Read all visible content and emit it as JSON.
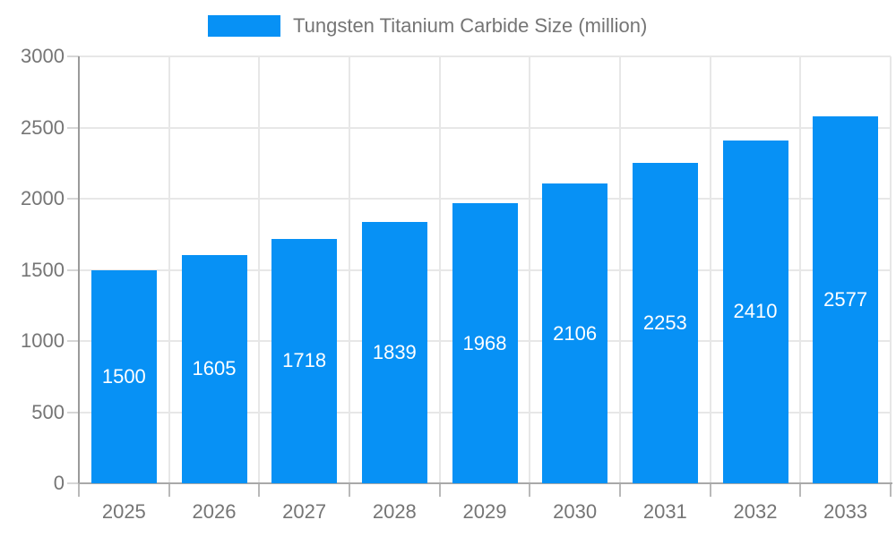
{
  "chart_data": {
    "type": "bar",
    "title": "",
    "legend": "Tungsten Titanium Carbide Size (million)",
    "legend_position": "top",
    "categories": [
      "2025",
      "2026",
      "2027",
      "2028",
      "2029",
      "2030",
      "2031",
      "2032",
      "2033"
    ],
    "values": [
      1500,
      1605,
      1718,
      1839,
      1968,
      2106,
      2253,
      2410,
      2577
    ],
    "xlabel": "",
    "ylabel": "",
    "ylim": [
      0,
      3000
    ],
    "yticks": [
      0,
      500,
      1000,
      1500,
      2000,
      2500,
      3000
    ],
    "grid": true,
    "value_labels": "inside-center"
  },
  "colors": {
    "bar": "#0791f5",
    "grid": "#e7e7e7",
    "x_axis": "#a8a8a8",
    "y_axis": "#9a9a9a",
    "y_tick": "#d6d6d6",
    "x_tick": "#b9b9b9",
    "axis_text": "#757575",
    "value_text": "#ffffff",
    "background": "#ffffff"
  }
}
